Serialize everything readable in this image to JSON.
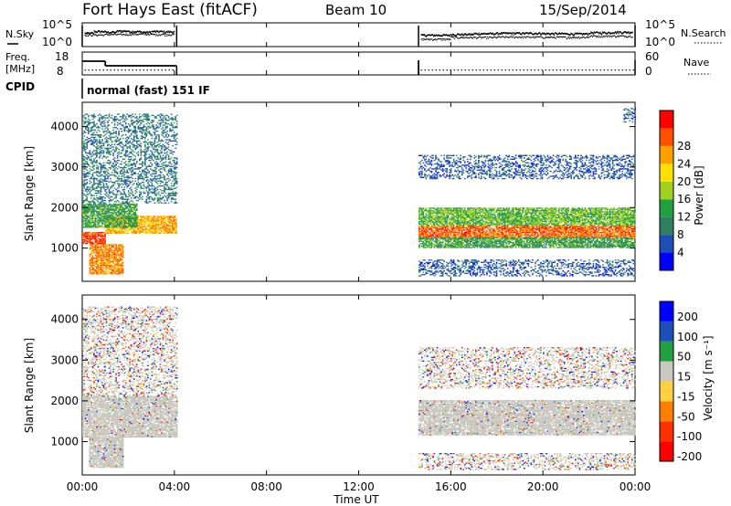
{
  "header": {
    "station": "Fort Hays East (fitACF)",
    "beam": "Beam 10",
    "date": "15/Sep/2014"
  },
  "top_panels": {
    "nsky_label": "N.Sky",
    "nsky_ticks": [
      "10^5",
      "10^0"
    ],
    "nsearch_label": "N.Search",
    "nsearch_ticks": [
      "10^5",
      "10^0"
    ],
    "freq_label": "Freq.",
    "freq_unit": "[MHz]",
    "freq_ticks": [
      "18",
      "8"
    ],
    "nave_label": "Nave",
    "nave_ticks": [
      "60",
      "0"
    ],
    "cpid_label": "CPID",
    "cpid_value": "normal (fast) 151 IF"
  },
  "panels": {
    "power": {
      "ylabel": "Slant Range [km]",
      "cbar_label": "Power [dB]"
    },
    "velocity": {
      "ylabel": "Slant Range [km]",
      "cbar_label": "Velocity [m s⁻¹]"
    },
    "xlabel": "Time UT"
  },
  "colors": {
    "power_scale": [
      "#0000ff",
      "#1e4fb8",
      "#2f7f60",
      "#20a040",
      "#a0d020",
      "#ffe000",
      "#ffa000",
      "#ff5000",
      "#ff0000"
    ],
    "velocity_scale": [
      "#0000ff",
      "#1e4fb8",
      "#20a040",
      "#c8c8c0",
      "#ffd040",
      "#ff8000",
      "#ff3000",
      "#ff0000"
    ],
    "ground_scatter": "#c4c4bc"
  },
  "chart_data": [
    {
      "type": "line",
      "title": "N.Sky / N.Search",
      "x_unit": "hours UT",
      "xlim": [
        0,
        24
      ],
      "log_scale": true,
      "segments": [
        [
          0,
          4.1
        ],
        [
          14.6,
          24
        ]
      ],
      "series": [
        {
          "name": "N.Sky",
          "x": [
            0.1,
            0.5,
            1,
            1.5,
            2,
            2.5,
            3,
            3.5,
            4,
            14.7,
            16,
            17,
            18,
            19,
            20,
            21,
            22,
            23,
            23.9
          ],
          "values": [
            1000,
            3000,
            2000,
            4000,
            3000,
            2000,
            3000,
            2500,
            3000,
            300,
            500,
            800,
            1000,
            1000,
            800,
            700,
            1500,
            2000,
            5000
          ]
        },
        {
          "name": "N.Search",
          "x": [
            0.1,
            1,
            2,
            3,
            4,
            14.7,
            16,
            18,
            20,
            22,
            23.9
          ],
          "values": [
            300,
            400,
            500,
            400,
            350,
            20,
            60,
            80,
            70,
            150,
            300
          ]
        }
      ]
    },
    {
      "type": "line",
      "title": "Freq. / Nave",
      "x_unit": "hours UT",
      "xlim": [
        0,
        24
      ],
      "series": [
        {
          "name": "Freq.",
          "unit": "MHz",
          "x": [
            0,
            1.0,
            1.0,
            4.1,
            14.6,
            24
          ],
          "values": [
            14.5,
            14.5,
            12,
            12,
            15,
            15
          ]
        },
        {
          "name": "Nave",
          "x": [
            0.1,
            4.0,
            14.7,
            24
          ],
          "values": [
            10,
            10,
            10,
            10
          ]
        }
      ]
    },
    {
      "type": "heatmap",
      "title": "Power",
      "xlabel": "Time UT",
      "ylabel": "Slant Range [km]",
      "xlim": [
        0,
        24
      ],
      "ylim": [
        180,
        4600
      ],
      "x_ticks": [
        "00:00",
        "04:00",
        "08:00",
        "12:00",
        "16:00",
        "20:00",
        "00:00"
      ],
      "y_ticks": [
        1000,
        2000,
        3000,
        4000
      ],
      "colorbar": {
        "label": "Power [dB]",
        "ticks": [
          4,
          8,
          12,
          16,
          20,
          24,
          28
        ],
        "range": [
          0,
          32
        ]
      },
      "features": [
        {
          "t0": 0.0,
          "t1": 1.0,
          "r0": 1100,
          "r1": 1400,
          "level": 28
        },
        {
          "t0": 1.0,
          "t1": 4.1,
          "r0": 1350,
          "r1": 1800,
          "level": 22
        },
        {
          "t0": 0.3,
          "t1": 1.8,
          "r0": 350,
          "r1": 1100,
          "level": 24
        },
        {
          "t0": 0.0,
          "t1": 2.4,
          "r0": 1500,
          "r1": 2100,
          "level": 12
        },
        {
          "t0": 0.0,
          "t1": 4.1,
          "r0": 2100,
          "r1": 4300,
          "level": 8
        },
        {
          "t0": 14.6,
          "t1": 24.0,
          "r0": 1250,
          "r1": 1550,
          "level": 26
        },
        {
          "t0": 14.6,
          "t1": 24.0,
          "r0": 1550,
          "r1": 2000,
          "level": 14
        },
        {
          "t0": 14.6,
          "t1": 24.0,
          "r0": 1000,
          "r1": 1250,
          "level": 12
        },
        {
          "t0": 14.6,
          "t1": 24.0,
          "r0": 2700,
          "r1": 3300,
          "level": 6
        },
        {
          "t0": 14.6,
          "t1": 24.0,
          "r0": 300,
          "r1": 700,
          "level": 6
        },
        {
          "t0": 23.5,
          "t1": 24.0,
          "r0": 4100,
          "r1": 4450,
          "level": 6
        }
      ]
    },
    {
      "type": "heatmap",
      "title": "Velocity",
      "xlabel": "Time UT",
      "ylabel": "Slant Range [km]",
      "xlim": [
        0,
        24
      ],
      "ylim": [
        180,
        4600
      ],
      "x_ticks": [
        "00:00",
        "04:00",
        "08:00",
        "12:00",
        "16:00",
        "20:00",
        "00:00"
      ],
      "y_ticks": [
        1000,
        2000,
        3000,
        4000
      ],
      "colorbar": {
        "label": "Velocity [m s⁻¹]",
        "ticks": [
          200,
          100,
          50,
          15,
          -15,
          -50,
          -100,
          -200
        ]
      },
      "features": [
        {
          "t0": 0.0,
          "t1": 4.1,
          "r0": 1100,
          "r1": 2100,
          "kind": "ground"
        },
        {
          "t0": 0.3,
          "t1": 1.8,
          "r0": 350,
          "r1": 1100,
          "kind": "ground"
        },
        {
          "t0": 0.0,
          "t1": 4.1,
          "r0": 2100,
          "r1": 4300,
          "kind": "mixed"
        },
        {
          "t0": 14.6,
          "t1": 24.0,
          "r0": 1150,
          "r1": 2000,
          "kind": "ground"
        },
        {
          "t0": 14.6,
          "t1": 24.0,
          "r0": 2300,
          "r1": 3300,
          "kind": "mixed"
        },
        {
          "t0": 14.6,
          "t1": 24.0,
          "r0": 300,
          "r1": 700,
          "kind": "mixed"
        }
      ]
    }
  ]
}
